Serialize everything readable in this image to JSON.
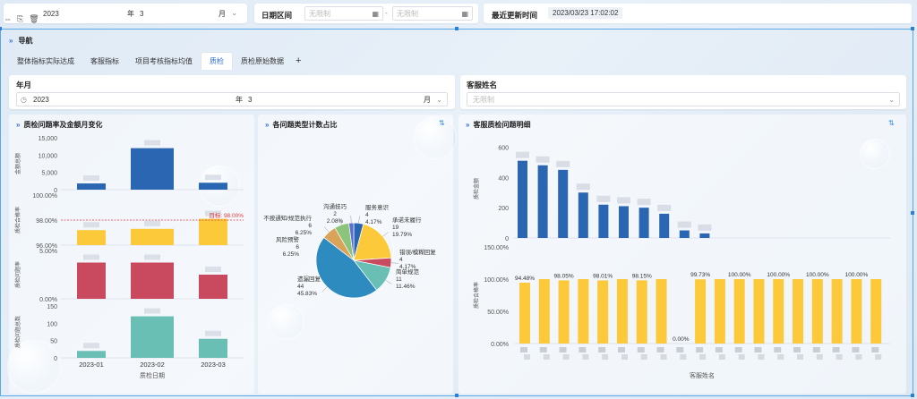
{
  "toolbar": {
    "year_value": "2023",
    "month_label": "年",
    "month_value": "3",
    "month_unit": "月",
    "date_range_label": "日期区间",
    "date_start_ph": "无限制",
    "date_sep": "-",
    "date_end_ph": "无限制",
    "last_update_label": "最近更新时间",
    "last_update_value": "2023/03/23 17:02:02",
    "icons": [
      "move-icon",
      "duplicate-icon",
      "delete-icon"
    ]
  },
  "nav": {
    "title": "导航",
    "tabs": [
      "整体指标实际达成",
      "客服指标",
      "项目考核指标均值",
      "质检",
      "质检原始数据"
    ],
    "active_tab": "质检",
    "add": "+"
  },
  "filters": {
    "year_label": "年月",
    "year_value": "2023",
    "month_label": "年",
    "month_value": "3",
    "month_unit": "月",
    "agent_label": "客服姓名",
    "agent_ph": "无限制"
  },
  "left_panel": {
    "title": "质检问题率及金额月变化",
    "xlabel": "质检日期",
    "target_label": "目标: 98.00%",
    "target_value": 98,
    "colors": {
      "blue": "#2a66b1",
      "yellow": "#fbc93a",
      "red": "#c9495f",
      "teal": "#69bfb4",
      "target": "#e23b3b"
    }
  },
  "mid_panel": {
    "title": "各问题类型计数占比"
  },
  "right_panel": {
    "title": "客服质检问题明细",
    "xlabel": "客服姓名"
  },
  "chart_data": [
    {
      "type": "bar",
      "title": "质检问题率及金额月变化",
      "categories": [
        "2023-01",
        "2023-02",
        "2023-03"
      ],
      "xlabel": "质检日期",
      "series": [
        {
          "ylabel": "金额总额",
          "ticks": [
            "15,000",
            "10,000",
            "5,000",
            "0"
          ],
          "values": [
            1800,
            12000,
            2000
          ],
          "ylim": [
            0,
            15000
          ]
        },
        {
          "ylabel": "质检合格率",
          "ticks": [
            "100.00%",
            "98.00%",
            "96.00%"
          ],
          "values": [
            97.2,
            97.3,
            98.1
          ],
          "ylim": [
            96,
            100
          ]
        },
        {
          "ylabel": "质检问题率",
          "ticks": [
            "5.00%",
            "0.00%"
          ],
          "values": [
            3.0,
            3.0,
            2.0
          ],
          "ylim": [
            0,
            4
          ]
        },
        {
          "ylabel": "质检问题总数",
          "ticks": [
            "150",
            "100",
            "50",
            "0"
          ],
          "values": [
            20,
            120,
            55
          ],
          "ylim": [
            0,
            150
          ]
        }
      ]
    },
    {
      "type": "pie",
      "title": "各问题类型计数占比",
      "slices": [
        {
          "label": "服务意识",
          "count": "4",
          "pct": "4.17%",
          "value": 4.17,
          "color": "#2a66b1"
        },
        {
          "label": "承诺未履行",
          "count": "19",
          "pct": "19.79%",
          "value": 19.79,
          "color": "#fbc93a"
        },
        {
          "label": "错误/模糊回复",
          "count": "4",
          "pct": "4.17%",
          "value": 4.17,
          "color": "#c9495f"
        },
        {
          "label": "简单规范",
          "count": "11",
          "pct": "11.46%",
          "value": 11.46,
          "color": "#69bfb4"
        },
        {
          "label": "遗漏回复",
          "count": "44",
          "pct": "45.83%",
          "value": 45.83,
          "color": "#2d8bbf"
        },
        {
          "label": "风险预警",
          "count": "6",
          "pct": "6.25%",
          "value": 6.25,
          "color": "#d9a35a"
        },
        {
          "label": "不按通知/规范执行",
          "count": "6",
          "pct": "6.25%",
          "value": 6.25,
          "color": "#8bc47a"
        },
        {
          "label": "沟通技巧",
          "count": "2",
          "pct": "2.08%",
          "value": 2.08,
          "color": "#5b6fcf"
        }
      ]
    },
    {
      "type": "bar",
      "title": "客服质检问题明细",
      "xlabel": "客服姓名",
      "series": [
        {
          "ylabel": "质检金额",
          "ticks": [
            "600",
            "400",
            "200",
            "0"
          ],
          "ylim": [
            0,
            650
          ],
          "values": [
            510,
            480,
            450,
            300,
            220,
            210,
            200,
            160,
            50,
            30
          ]
        },
        {
          "ylabel": "质检合格率",
          "ticks": [
            "150.00%",
            "100.00%",
            "50.00%",
            "0.00%"
          ],
          "ylim": [
            0,
            150
          ],
          "values": [
            94.48,
            100,
            98.05,
            100,
            98.01,
            100,
            98.15,
            100,
            0,
            99.73,
            100,
            100,
            100,
            100,
            100,
            100,
            100,
            100,
            100
          ],
          "labels": [
            "94.48%",
            "",
            "98.05%",
            "",
            "98.01%",
            "",
            "98.15%",
            "",
            "0.00%",
            "99.73%",
            "",
            "100.00%",
            "",
            "100.00%",
            "",
            "100.00%",
            "",
            "100.00%",
            ""
          ]
        }
      ]
    }
  ]
}
